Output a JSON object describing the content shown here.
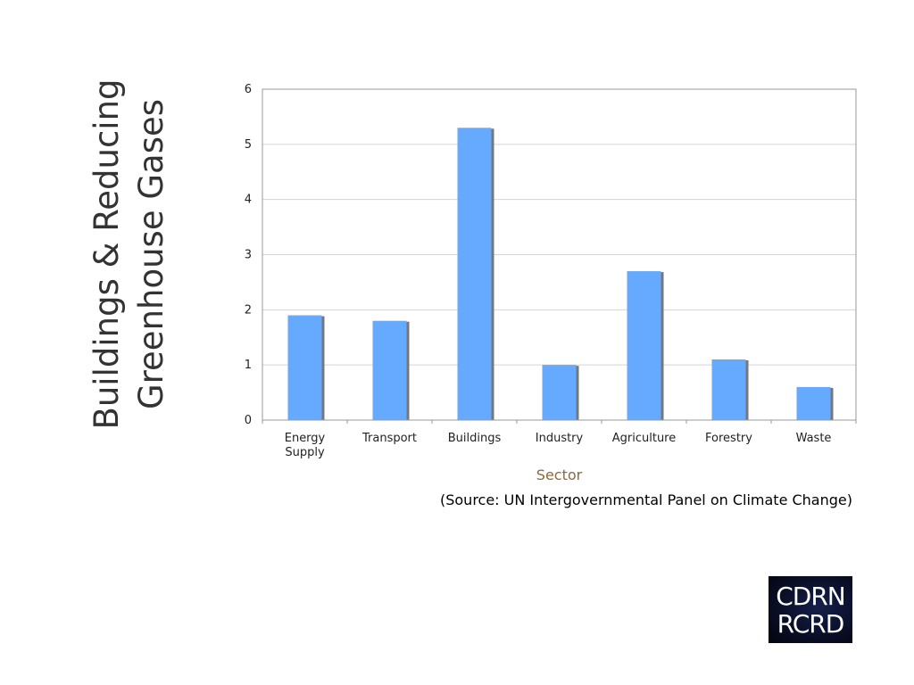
{
  "slide": {
    "title_lines": [
      "Buildings & Reducing",
      "Greenhouse Gases"
    ],
    "source": "(Source: UN Intergovernmental Panel on Climate Change)",
    "logo_lines": [
      "CDRN",
      "RCRD"
    ]
  },
  "chart_data": {
    "type": "bar",
    "categories": [
      "Energy Supply",
      "Transport",
      "Buildings",
      "Industry",
      "Agriculture",
      "Forestry",
      "Waste"
    ],
    "category_lines": [
      [
        "Energy",
        "Supply"
      ],
      [
        "Transport"
      ],
      [
        "Buildings"
      ],
      [
        "Industry"
      ],
      [
        "Agriculture"
      ],
      [
        "Forestry"
      ],
      [
        "Waste"
      ]
    ],
    "values": [
      1.9,
      1.8,
      5.3,
      1.0,
      2.7,
      1.1,
      0.6
    ],
    "xlabel": "Sector",
    "ylabel": "",
    "ylim": [
      0,
      6
    ],
    "yticks": [
      0,
      1,
      2,
      3,
      4,
      5,
      6
    ],
    "grid": true,
    "legend": "none",
    "bar_color": "#66aaff",
    "bar_shadow_color": "#777777"
  }
}
